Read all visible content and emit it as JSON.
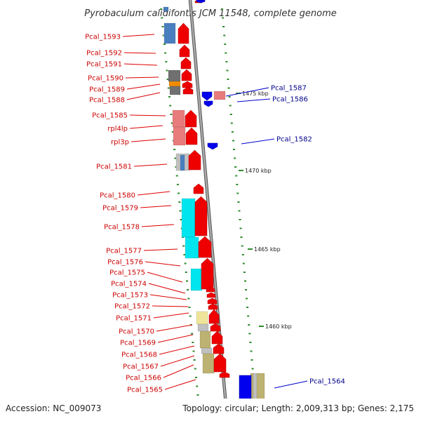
{
  "title": "Pyrobaculum calidifontis JCM 11548, complete genome",
  "footer": {
    "accession": "Accession: NC_009073",
    "summary": "Topology: circular; Length: 2,009,313 bp; Genes: 2,175"
  },
  "scale_labels": [
    "1475 kbp",
    "1470 kbp",
    "1465 kbp",
    "1460 kbp"
  ],
  "left_genes": [
    "Pcal_1593",
    "Pcal_1592",
    "Pcal_1591",
    "Pcal_1590",
    "Pcal_1589",
    "Pcal_1588",
    "Pcal_1585",
    "rpl4lp",
    "rpl3p",
    "Pcal_1581",
    "Pcal_1580",
    "Pcal_1579",
    "Pcal_1578",
    "Pcal_1577",
    "Pcal_1576",
    "Pcal_1575",
    "Pcal_1574",
    "Pcal_1573",
    "Pcal_1572",
    "Pcal_1571",
    "Pcal_1570",
    "Pcal_1569",
    "Pcal_1568",
    "Pcal_1567",
    "Pcal_1566",
    "Pcal_1565"
  ],
  "right_genes": [
    "Pcal_1587",
    "Pcal_1586",
    "Pcal_1582",
    "Pcal_1564"
  ],
  "colors": {
    "forward_gene": "#ee0000",
    "reverse_gene": "#0000ee",
    "backbone": "#888888",
    "tick": "#2e8b2e",
    "cog_blue": "#4a7fbf",
    "cog_pink": "#e87c7c",
    "cog_gray": "#707070",
    "cog_orange": "#f08c00",
    "cog_cyan": "#00e5ee",
    "cog_yellow": "#efe59a",
    "cog_khaki": "#bdb271",
    "cog_lightgray": "#c0c0c0"
  }
}
